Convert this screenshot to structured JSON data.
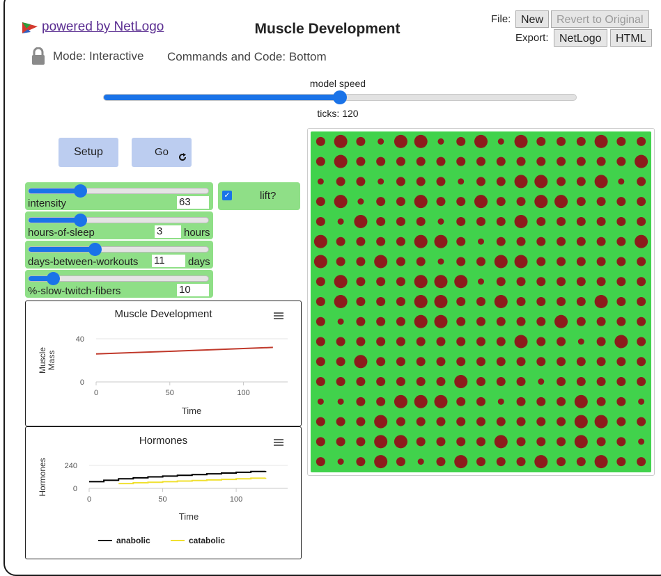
{
  "header": {
    "powered_by": "powered by NetLogo",
    "title": "Muscle Development",
    "file_label": "File:",
    "export_label": "Export:",
    "new_button": "New",
    "revert_button": "Revert to Original",
    "export_netlogo": "NetLogo",
    "export_html": "HTML"
  },
  "mode": {
    "mode_text": "Mode: Interactive",
    "commands_text": "Commands and Code: Bottom"
  },
  "speed": {
    "label": "model speed",
    "value": 0.5,
    "ticks_text": "ticks: 120"
  },
  "buttons": {
    "setup": "Setup",
    "go": "Go"
  },
  "sliders": [
    {
      "name": "intensity",
      "value": "63",
      "unit": "",
      "fraction": 0.29
    },
    {
      "name": "hours-of-sleep",
      "value": "3",
      "unit": "hours",
      "fraction": 0.29
    },
    {
      "name": "days-between-workouts",
      "value": "11",
      "unit": "days",
      "fraction": 0.37
    },
    {
      "name": "%-slow-twitch-fibers",
      "value": "10",
      "unit": "",
      "fraction": 0.14
    }
  ],
  "switch": {
    "label": "lift?",
    "checked": true
  },
  "plots": {
    "muscle": {
      "title": "Muscle Development",
      "ylabel_line1": "Muscle",
      "ylabel_line2": "Mass",
      "xlabel": "Time",
      "yticks": [
        "40",
        "0"
      ],
      "xticks": [
        "0",
        "50",
        "100"
      ]
    },
    "hormones": {
      "title": "Hormones",
      "ylabel": "Hormones",
      "xlabel": "Time",
      "yticks": [
        "240",
        "0"
      ],
      "xticks": [
        "0",
        "50",
        "100"
      ],
      "legend": [
        {
          "name": "anabolic",
          "color": "#000000"
        },
        {
          "name": "catabolic",
          "color": "#f0e030"
        }
      ]
    }
  },
  "chart_data": [
    {
      "type": "line",
      "title": "Muscle Development",
      "xlabel": "Time",
      "ylabel": "Muscle Mass",
      "xlim": [
        0,
        130
      ],
      "ylim": [
        0,
        40
      ],
      "series": [
        {
          "color": "#c0392b",
          "x": [
            0,
            40,
            80,
            120
          ],
          "y": [
            26,
            27.9,
            29.9,
            32
          ]
        }
      ]
    },
    {
      "type": "line",
      "title": "Hormones",
      "xlabel": "Time",
      "ylabel": "Hormones",
      "xlim": [
        0,
        135
      ],
      "ylim": [
        0,
        240
      ],
      "series": [
        {
          "name": "anabolic",
          "color": "#000000",
          "x": [
            0,
            10,
            20,
            30,
            40,
            50,
            60,
            70,
            80,
            90,
            100,
            110,
            120
          ],
          "y": [
            70,
            85,
            100,
            110,
            120,
            128,
            136,
            144,
            152,
            160,
            168,
            176,
            182
          ]
        },
        {
          "name": "catabolic",
          "color": "#f0e030",
          "x": [
            20,
            30,
            40,
            50,
            60,
            70,
            80,
            90,
            100,
            110,
            120
          ],
          "y": [
            50,
            58,
            64,
            70,
            76,
            82,
            88,
            94,
            100,
            106,
            110
          ]
        }
      ]
    }
  ],
  "world": {
    "background": "#41d24c",
    "cell_color": "#8c1c1c",
    "sizes": [
      [
        2,
        3,
        2,
        1,
        3,
        3,
        1,
        2,
        3,
        1,
        3,
        2,
        2,
        2,
        3,
        2,
        2
      ],
      [
        2,
        3,
        2,
        2,
        2,
        2,
        2,
        2,
        2,
        2,
        2,
        2,
        2,
        2,
        2,
        2,
        3
      ],
      [
        1,
        2,
        2,
        1,
        2,
        2,
        2,
        1,
        2,
        2,
        3,
        3,
        2,
        2,
        3,
        1,
        2
      ],
      [
        2,
        3,
        1,
        2,
        2,
        3,
        2,
        2,
        3,
        2,
        2,
        3,
        3,
        2,
        2,
        2,
        2
      ],
      [
        2,
        1,
        3,
        2,
        2,
        2,
        1,
        2,
        2,
        2,
        3,
        2,
        2,
        2,
        2,
        2,
        2
      ],
      [
        3,
        2,
        2,
        2,
        2,
        3,
        3,
        2,
        1,
        2,
        2,
        2,
        2,
        2,
        2,
        2,
        3
      ],
      [
        3,
        2,
        2,
        3,
        2,
        2,
        1,
        2,
        2,
        3,
        3,
        2,
        2,
        2,
        2,
        2,
        2
      ],
      [
        2,
        3,
        2,
        2,
        2,
        3,
        3,
        3,
        1,
        2,
        2,
        2,
        2,
        2,
        2,
        2,
        2
      ],
      [
        2,
        3,
        2,
        2,
        2,
        3,
        3,
        2,
        2,
        3,
        2,
        2,
        2,
        2,
        3,
        2,
        2
      ],
      [
        2,
        1,
        2,
        2,
        2,
        3,
        3,
        2,
        2,
        2,
        2,
        2,
        3,
        2,
        2,
        2,
        2
      ],
      [
        2,
        2,
        2,
        2,
        2,
        2,
        2,
        2,
        2,
        2,
        3,
        2,
        2,
        1,
        2,
        3,
        2
      ],
      [
        2,
        2,
        3,
        2,
        2,
        2,
        2,
        2,
        2,
        2,
        2,
        2,
        2,
        2,
        2,
        2,
        2
      ],
      [
        2,
        2,
        2,
        2,
        2,
        2,
        2,
        3,
        2,
        2,
        2,
        1,
        2,
        2,
        2,
        2,
        2
      ],
      [
        1,
        1,
        2,
        2,
        3,
        3,
        3,
        2,
        2,
        1,
        2,
        2,
        2,
        3,
        2,
        2,
        1
      ],
      [
        2,
        2,
        2,
        3,
        2,
        2,
        2,
        2,
        2,
        2,
        2,
        2,
        2,
        3,
        3,
        2,
        2
      ],
      [
        2,
        2,
        2,
        3,
        3,
        2,
        2,
        2,
        2,
        3,
        2,
        2,
        2,
        3,
        2,
        2,
        1
      ],
      [
        2,
        1,
        2,
        3,
        2,
        1,
        2,
        3,
        2,
        2,
        2,
        3,
        2,
        2,
        3,
        2,
        2
      ]
    ]
  }
}
